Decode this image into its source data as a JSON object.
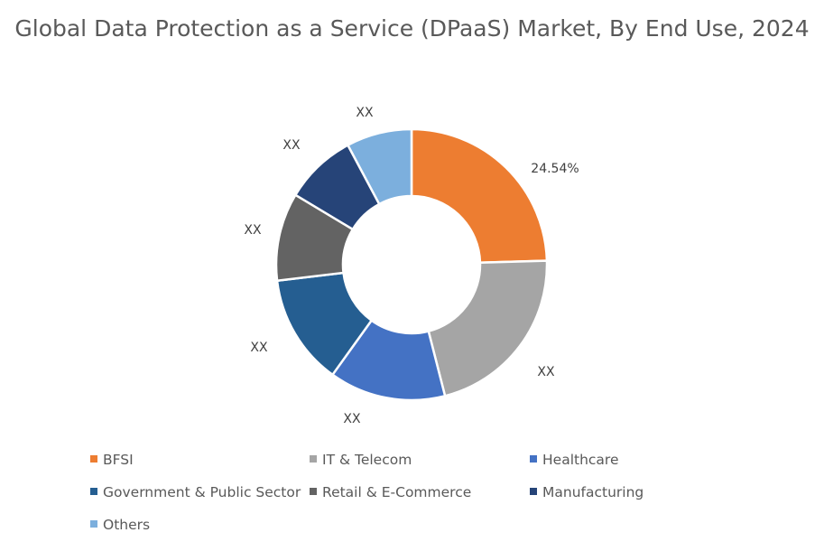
{
  "chart_data": {
    "type": "pie",
    "donut": true,
    "title": "Global Data Protection as a Service (DPaaS) Market, By End Use, 2024",
    "categories": [
      "BFSI",
      "IT & Telecom",
      "Healthcare",
      "Government & Public Sector",
      "Retail & E-Commerce",
      "Manufacturing",
      "Others"
    ],
    "values": [
      24.54,
      21.5,
      13.9,
      13.2,
      10.5,
      8.6,
      7.8
    ],
    "data_labels": [
      "24.54%",
      "XX",
      "XX",
      "XX",
      "XX",
      "XX",
      "XX"
    ],
    "colors": [
      "#ED7D31",
      "#A5A5A5",
      "#4472C4",
      "#255E91",
      "#636363",
      "#264478",
      "#7CAFDD"
    ],
    "legend_position": "bottom"
  }
}
